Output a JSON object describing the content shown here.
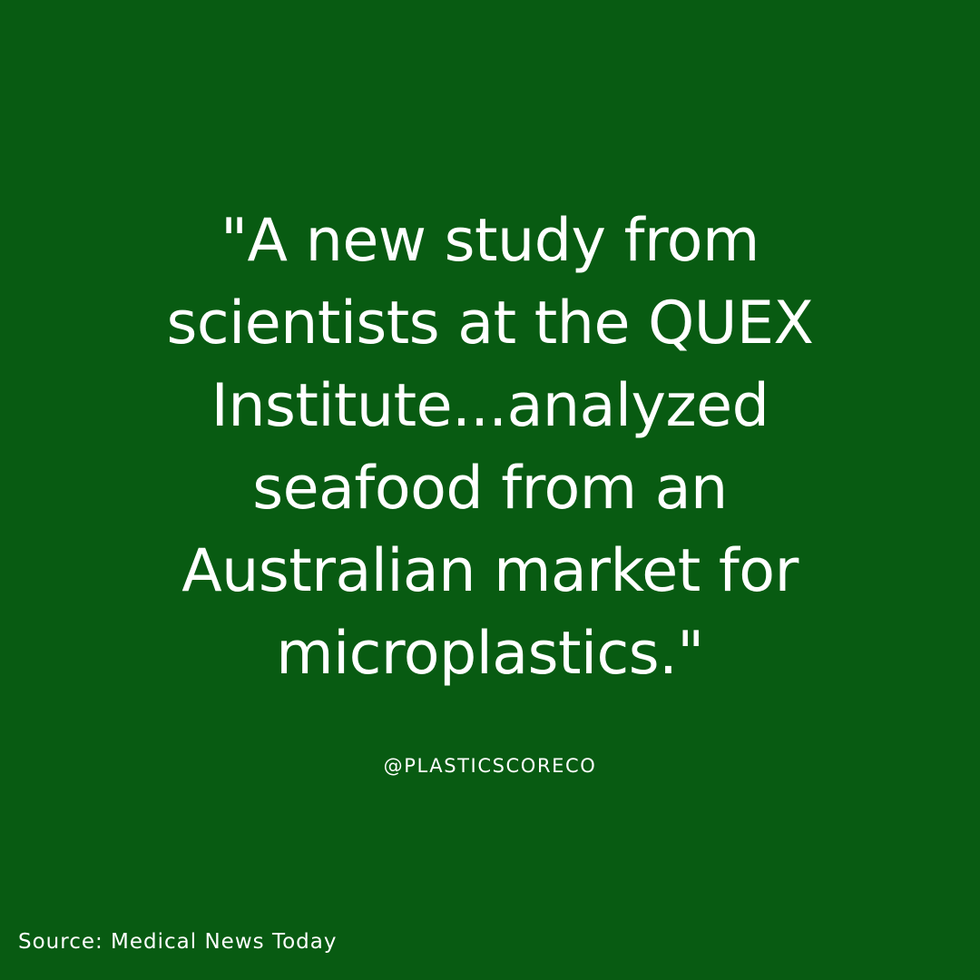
{
  "card": {
    "background": "#085b12",
    "text_color": "#ffffff"
  },
  "quote": {
    "lines": [
      "\"A new study from",
      "scientists at the QUEX",
      "Institute...analyzed",
      "seafood from an",
      "Australian market for",
      "microplastics.\""
    ]
  },
  "handle": "@PLASTICSCORECO",
  "source": "Source: Medical News Today"
}
